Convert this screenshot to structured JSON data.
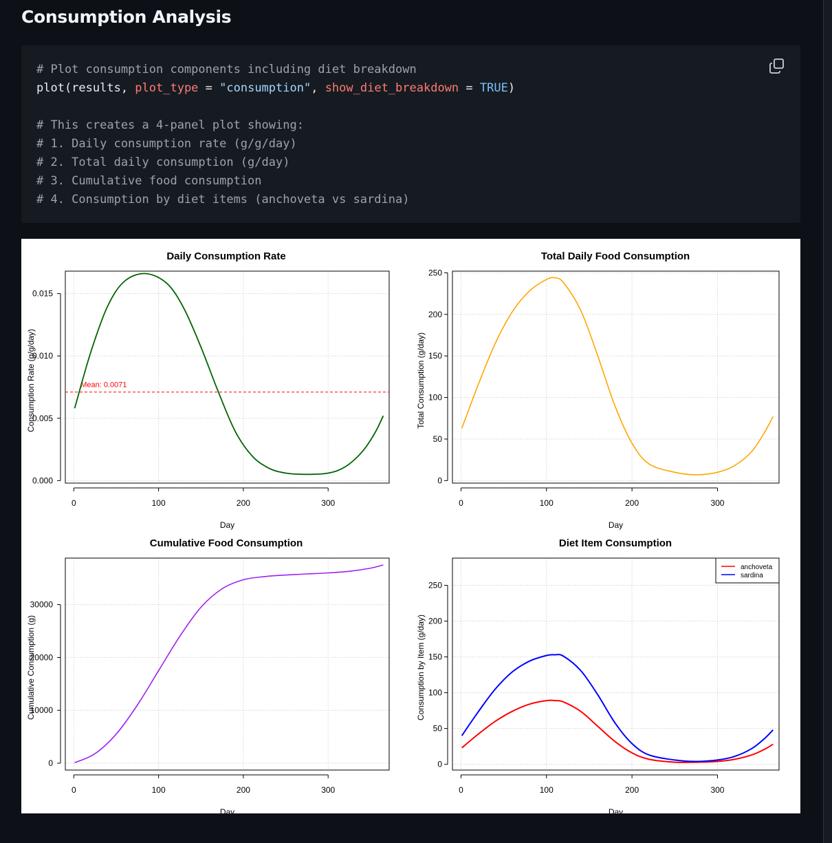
{
  "page": {
    "title": "Consumption Analysis"
  },
  "code": {
    "lines": [
      [
        {
          "t": "# Plot consumption components including diet breakdown",
          "c": "comment"
        }
      ],
      [
        {
          "t": "plot(results, ",
          "c": "plain"
        },
        {
          "t": "plot_type",
          "c": "arg"
        },
        {
          "t": " = ",
          "c": "plain"
        },
        {
          "t": "\"consumption\"",
          "c": "str"
        },
        {
          "t": ", ",
          "c": "plain"
        },
        {
          "t": "show_diet_breakdown",
          "c": "arg"
        },
        {
          "t": " = ",
          "c": "plain"
        },
        {
          "t": "TRUE",
          "c": "kw"
        },
        {
          "t": ")",
          "c": "plain"
        }
      ],
      [],
      [
        {
          "t": "# This creates a 4-panel plot showing:",
          "c": "comment"
        }
      ],
      [
        {
          "t": "# 1. Daily consumption rate (g/g/day)",
          "c": "comment"
        }
      ],
      [
        {
          "t": "# 2. Total daily consumption (g/day)",
          "c": "comment"
        }
      ],
      [
        {
          "t": "# 3. Cumulative food consumption",
          "c": "comment"
        }
      ],
      [
        {
          "t": "# 4. Consumption by diet items (anchoveta vs sardina)",
          "c": "comment"
        }
      ]
    ],
    "copy_icon": "copy-icon"
  },
  "colors": {
    "background": "#0d1117",
    "code_background": "#161b22",
    "rate_line": "#006400",
    "mean_line": "#ff0000",
    "total_line": "#ffa500",
    "cumulative_line": "#a020f0",
    "anchoveta": "#ff0000",
    "sardina": "#0000ff"
  },
  "chart_data": [
    {
      "type": "line",
      "title": "Daily Consumption Rate",
      "xlabel": "Day",
      "ylabel": "Consumption Rate (g/g/day)",
      "xlim": [
        0,
        365
      ],
      "ylim": [
        0,
        0.0165
      ],
      "xticks": [
        0,
        100,
        200,
        300
      ],
      "yticks": [
        0,
        0.005,
        0.01,
        0.015
      ],
      "ytick_labels": [
        "0.000",
        "0.005",
        "0.010",
        "0.015"
      ],
      "grid": true,
      "series": [
        {
          "x": [
            1,
            20,
            40,
            60,
            85,
            110,
            130,
            150,
            170,
            190,
            210,
            230,
            250,
            275,
            300,
            320,
            340,
            355,
            365
          ],
          "y": [
            0.0058,
            0.0103,
            0.014,
            0.016,
            0.0166,
            0.0158,
            0.0138,
            0.0107,
            0.0072,
            0.004,
            0.002,
            0.001,
            0.0006,
            0.0005,
            0.0006,
            0.0011,
            0.0023,
            0.0038,
            0.0052
          ]
        }
      ],
      "annotation": {
        "label": "Mean: 0.0071",
        "value": 0.0071
      }
    },
    {
      "type": "line",
      "title": "Total Daily Food Consumption",
      "xlabel": "Day",
      "ylabel": "Total Consumption (g/day)",
      "xlim": [
        0,
        365
      ],
      "ylim": [
        0,
        250
      ],
      "xticks": [
        0,
        100,
        200,
        300
      ],
      "yticks": [
        0,
        50,
        100,
        150,
        200,
        250
      ],
      "grid": true,
      "series": [
        {
          "x": [
            1,
            20,
            40,
            60,
            80,
            100,
            110,
            120,
            140,
            160,
            180,
            200,
            220,
            250,
            275,
            300,
            320,
            340,
            355,
            365
          ],
          "y": [
            63,
            115,
            165,
            203,
            228,
            242,
            244,
            238,
            205,
            150,
            90,
            45,
            20,
            10,
            7,
            10,
            18,
            35,
            58,
            77
          ]
        }
      ]
    },
    {
      "type": "line",
      "title": "Cumulative Food Consumption",
      "xlabel": "Day",
      "ylabel": "Cumulative Consumption (g)",
      "xlim": [
        0,
        365
      ],
      "ylim": [
        0,
        37000
      ],
      "xticks": [
        0,
        100,
        200,
        300
      ],
      "yticks": [
        0,
        10000,
        20000,
        30000
      ],
      "grid": true,
      "series": [
        {
          "x": [
            1,
            25,
            50,
            75,
            100,
            125,
            150,
            175,
            200,
            225,
            250,
            275,
            300,
            325,
            350,
            365
          ],
          "y": [
            100,
            1800,
            5500,
            11000,
            17500,
            24000,
            29500,
            33000,
            34700,
            35300,
            35600,
            35800,
            36000,
            36300,
            36900,
            37500
          ]
        }
      ]
    },
    {
      "type": "line",
      "title": "Diet Item Consumption",
      "xlabel": "Day",
      "ylabel": "Consumption by Item (g/day)",
      "xlim": [
        0,
        365
      ],
      "ylim": [
        0,
        275
      ],
      "xticks": [
        0,
        100,
        200,
        300
      ],
      "yticks": [
        0,
        50,
        100,
        150,
        200,
        250
      ],
      "grid": true,
      "legend": "top-right",
      "series": [
        {
          "name": "anchoveta",
          "x": [
            1,
            20,
            40,
            60,
            80,
            100,
            110,
            120,
            140,
            160,
            180,
            200,
            220,
            250,
            275,
            300,
            320,
            340,
            355,
            365
          ],
          "y": [
            23,
            42,
            60,
            74,
            84,
            89,
            89,
            87,
            74,
            53,
            32,
            16,
            7,
            3,
            3,
            4,
            7,
            13,
            21,
            28
          ]
        },
        {
          "name": "sardina",
          "x": [
            1,
            20,
            40,
            60,
            80,
            100,
            110,
            120,
            140,
            160,
            180,
            200,
            220,
            250,
            275,
            300,
            320,
            340,
            355,
            365
          ],
          "y": [
            40,
            73,
            105,
            129,
            144,
            152,
            153,
            151,
            131,
            97,
            58,
            29,
            13,
            6,
            4,
            6,
            11,
            22,
            36,
            48
          ]
        }
      ]
    }
  ]
}
